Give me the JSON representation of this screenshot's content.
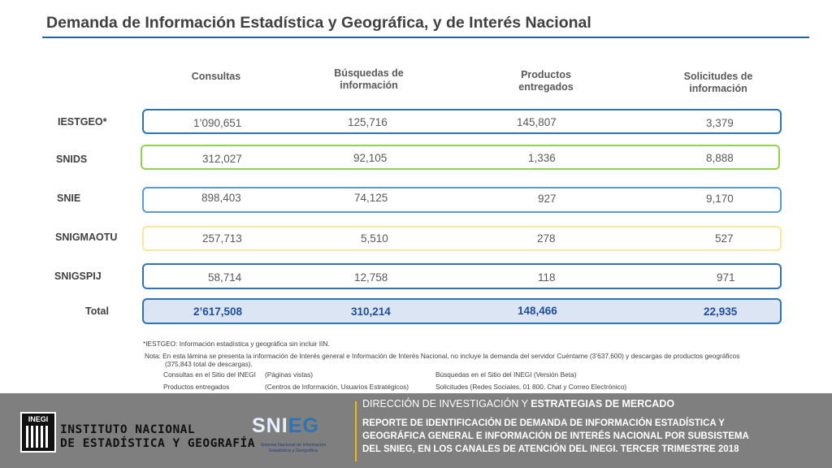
{
  "title": "Demanda de Información Estadística y Geográfica, y de Interés Nacional",
  "columns": [
    {
      "line1": "Consultas",
      "line2": ""
    },
    {
      "line1": "Búsquedas de",
      "line2": "información"
    },
    {
      "line1": "Productos",
      "line2": "entregados"
    },
    {
      "line1": "Solicitudes de",
      "line2": "información"
    }
  ],
  "rows": [
    {
      "label": "IESTGEO*",
      "consultas": "1’090,651",
      "busquedas": "125,716",
      "productos": "145,807",
      "solicitudes": "3,379",
      "border_color": "#2e74b5"
    },
    {
      "label": "SNIDS",
      "consultas": "312,027",
      "busquedas": "92,105",
      "productos": "1,336",
      "solicitudes": "8,888",
      "border_color": "#92d050"
    },
    {
      "label": "SNIE",
      "consultas": "898,403",
      "busquedas": "74,125",
      "productos": "927",
      "solicitudes": "9,170",
      "border_color": "#5b9bd5"
    },
    {
      "label": "SNIGMAOTU",
      "consultas": "257,713",
      "busquedas": "5,510",
      "productos": "278",
      "solicitudes": "527",
      "border_color": "#ffe699"
    },
    {
      "label": "SNIGSPIJ",
      "consultas": "58,714",
      "busquedas": "12,758",
      "productos": "118",
      "solicitudes": "971",
      "border_color": "#2e74b5"
    }
  ],
  "total": {
    "label": "Total",
    "consultas": "2’617,508",
    "busquedas": "310,214",
    "productos": "148,466",
    "solicitudes": "22,935"
  },
  "footnotes": {
    "asterisk": "*IESTGEO: Información estadística y geográfica sin incluir IIN.",
    "note_line1": "Nota: En esta lámina se presenta la información de Interés general e Información de Interés Nacional, no incluye la demanda del servidor Cuéntame (3’637,600) y descargas de productos geográficos",
    "note_line2": "(375,843 total de descargas).",
    "def1_term": "Consultas en el Sitio del INEGI",
    "def1_desc": "(Páginas vistas)",
    "def2_term": "Búsquedas en el Sitio del INEGI (Versión Beta)",
    "def3_term": "Productos entregados",
    "def3_desc": "(Centros de Información, Usuarios Estratégicos)",
    "def4_term": "Solicitudes (Redes Sociales, 01 800, Chat y Correo Electrónico)"
  },
  "footer": {
    "logo_text": "INEGI",
    "org_line1": "INSTITUTO NACIONAL",
    "org_line2": "DE ESTADÍSTICA Y GEOGRAFÍA",
    "snieg_a": "SNI",
    "snieg_b": "EG",
    "snieg_sub1": "Sistema Nacional de Información",
    "snieg_sub2": "Estadística y Geográfica",
    "dir_a": "DIRECCIÓN DE INVESTIGACIÓN Y ",
    "dir_b": "ESTRATEGIAS DE MERCADO",
    "report_line1": "REPORTE DE IDENTIFICACIÓN DE DEMANDA DE INFORMACIÓN ESTADÍSTICA  Y",
    "report_line2": "GEOGRÁFICA GENERAL E INFORMACIÓN DE INTERÉS NACIONAL POR SUBSISTEMA",
    "report_line3": "DEL SNIEG, EN LOS CANALES DE ATENCIÓN DEL INEGI. TERCER TRIMESTRE 2018"
  }
}
